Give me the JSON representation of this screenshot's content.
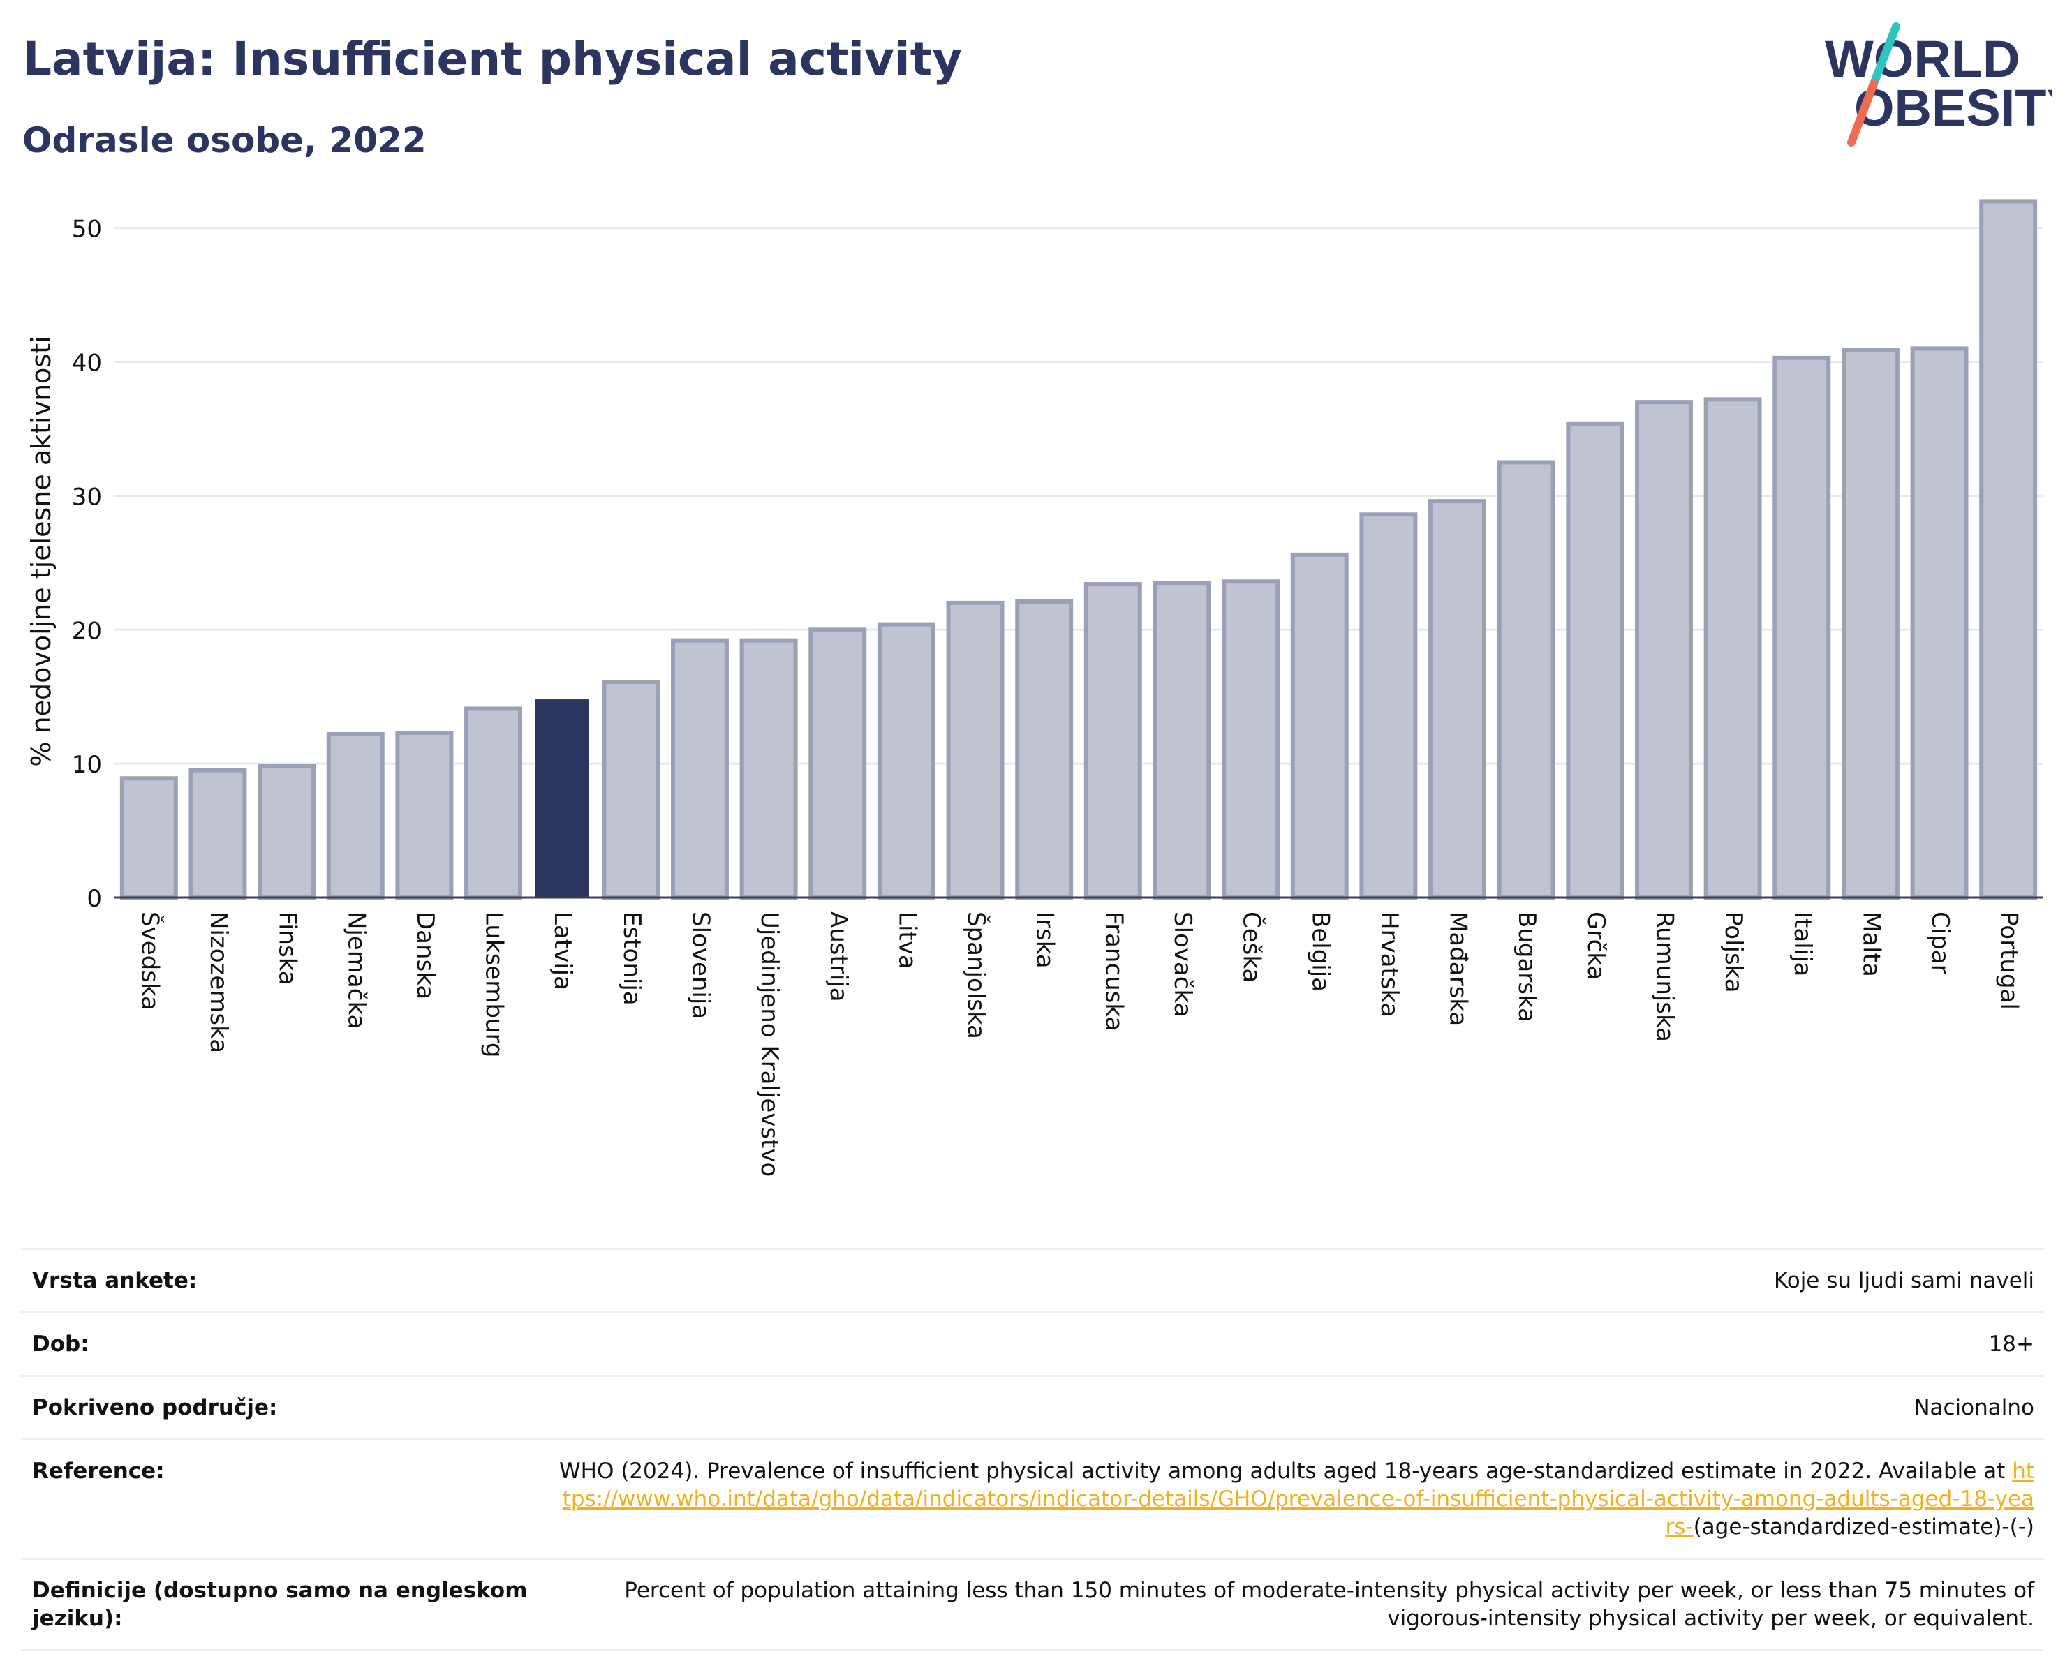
{
  "header": {
    "title": "Latvija: Insufficient physical activity",
    "subtitle": "Odrasle osobe, 2022",
    "logo": {
      "line1": "WORLD",
      "line2": "OBESITY",
      "colors": {
        "text": "#2b3560",
        "slash_top": "#2ec4c0",
        "slash_bottom": "#f06a55"
      }
    }
  },
  "chart_data": {
    "type": "bar",
    "ylabel": "% nedovoljne tjelesne aktivnosti",
    "xlabel": "",
    "ylim": [
      0,
      54
    ],
    "yticks": [
      0,
      10,
      20,
      30,
      40,
      50
    ],
    "grid": true,
    "highlight": "Latvija",
    "colors": {
      "bar": "#c0c3d0",
      "bar_border": "#9aa0b8",
      "highlight": "#2b3560"
    },
    "categories": [
      "Švedska",
      "Nizozemska",
      "Finska",
      "Njemačka",
      "Danska",
      "Luksemburg",
      "Latvija",
      "Estonija",
      "Slovenija",
      "Ujedinjeno Kraljevstvo",
      "Austrija",
      "Litva",
      "Španjolska",
      "Irska",
      "Francuska",
      "Slovačka",
      "Češka",
      "Belgija",
      "Hrvatska",
      "Mađarska",
      "Bugarska",
      "Grčka",
      "Rumunjska",
      "Poljska",
      "Italija",
      "Malta",
      "Cipar",
      "Portugal"
    ],
    "values": [
      8.9,
      9.5,
      9.8,
      12.2,
      12.3,
      14.1,
      14.8,
      16.1,
      19.2,
      19.2,
      20.0,
      20.4,
      22.0,
      22.1,
      23.4,
      23.5,
      23.6,
      25.6,
      28.6,
      29.6,
      32.5,
      35.4,
      37.0,
      37.2,
      40.3,
      40.9,
      41.0,
      52.0
    ]
  },
  "info": {
    "survey_type": {
      "label": "Vrsta ankete:",
      "value": "Koje su ljudi sami naveli"
    },
    "age": {
      "label": "Dob:",
      "value": "18+"
    },
    "coverage": {
      "label": "Pokriveno područje:",
      "value": "Nacionalno"
    },
    "reference": {
      "label": "Reference:",
      "text": "WHO (2024). Prevalence of insufficient physical activity among adults aged 18-years age-standardized estimate in 2022. Available at ",
      "link": "https://www.who.int/data/gho/data/indicators/indicator-details/GHO/prevalence-of-insufficient-physical-activity-among-adults-aged-18-years-",
      "suffix": "(age-standardized-estimate)-(-)"
    },
    "definition": {
      "label": "Definicije (dostupno samo na engleskom jeziku):",
      "value": "Percent of population attaining less than 150 minutes of moderate-intensity physical activity per week, or less than 75 minutes of vigorous-intensity physical activity per week, or equivalent."
    }
  }
}
